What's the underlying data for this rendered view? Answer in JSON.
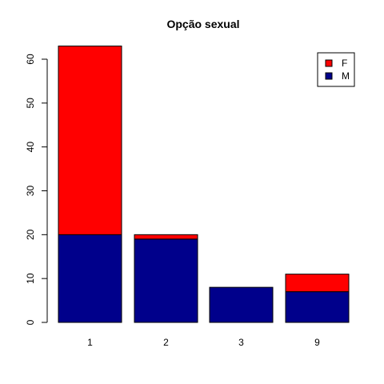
{
  "chart_data": {
    "type": "bar",
    "stacked": true,
    "title": "Opção sexual",
    "xlabel": "",
    "ylabel": "",
    "categories": [
      "1",
      "2",
      "3",
      "9"
    ],
    "series": [
      {
        "name": "M",
        "color": "#00008B",
        "values": [
          20,
          19,
          8,
          7
        ]
      },
      {
        "name": "F",
        "color": "#FF0000",
        "values": [
          43,
          1,
          0,
          4
        ]
      }
    ],
    "ylim": [
      0,
      63
    ],
    "yticks": [
      0,
      10,
      20,
      30,
      40,
      50,
      60
    ],
    "legend": {
      "position": "top-right",
      "entries": [
        "F",
        "M"
      ]
    },
    "grid": false
  }
}
